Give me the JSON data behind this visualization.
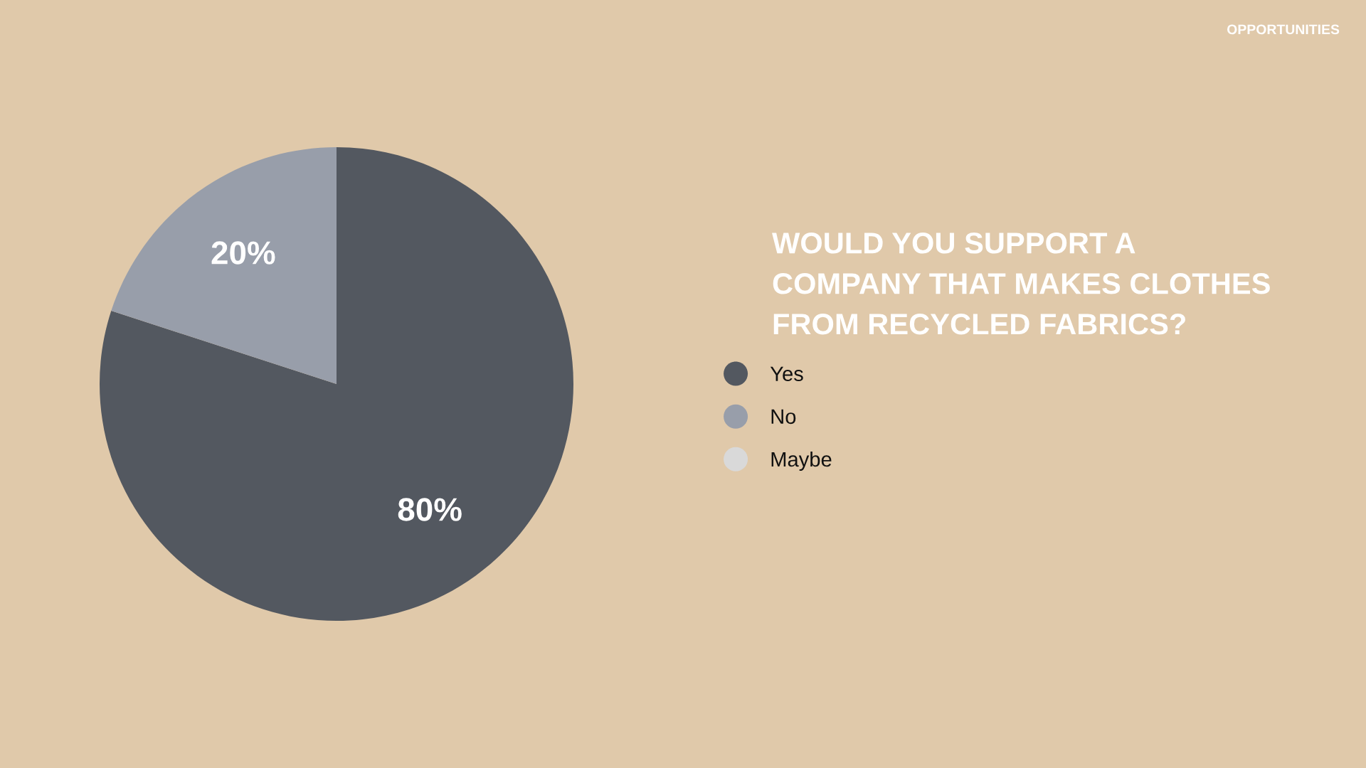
{
  "chart_data": {
    "type": "pie",
    "title": "WOULD YOU SUPPORT A\nCOMPANY THAT MAKES CLOTHES\nFROM RECYCLED FABRICS?",
    "categories": [
      "Yes",
      "No",
      "Maybe"
    ],
    "values": [
      80,
      20,
      0
    ],
    "colors": [
      "#535860",
      "#989eaa",
      "#d9d9d9"
    ],
    "value_labels": [
      "80%",
      "20%",
      null
    ],
    "legend": "right",
    "annotations": [
      "OPPORTUNITIES"
    ]
  }
}
